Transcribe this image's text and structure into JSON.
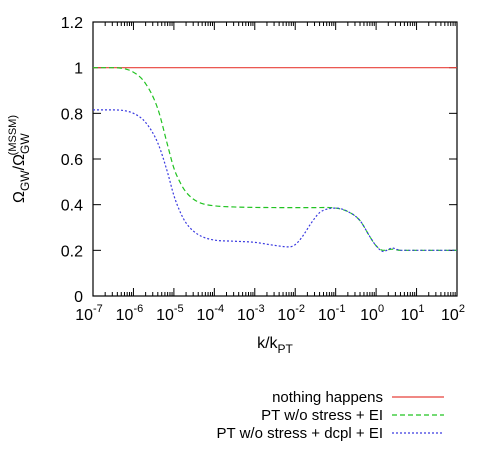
{
  "chart_data": {
    "type": "line",
    "xscale": "log",
    "xlim": [
      1e-07,
      100
    ],
    "ylim": [
      0,
      1.2
    ],
    "grid": false,
    "legend_position": "below-right",
    "xlabel": {
      "base": "k/k",
      "sub": "PT"
    },
    "ylabel": {
      "omega1": "Ω",
      "sub1": "GW",
      "slash": "/Ω",
      "sub2": "GW",
      "sup2": "(MSSM)"
    },
    "xticks": [
      {
        "value": 1e-07,
        "base": "10",
        "exp": "-7"
      },
      {
        "value": 1e-06,
        "base": "10",
        "exp": "-6"
      },
      {
        "value": 1e-05,
        "base": "10",
        "exp": "-5"
      },
      {
        "value": 0.0001,
        "base": "10",
        "exp": "-4"
      },
      {
        "value": 0.001,
        "base": "10",
        "exp": "-3"
      },
      {
        "value": 0.01,
        "base": "10",
        "exp": "-2"
      },
      {
        "value": 0.1,
        "base": "10",
        "exp": "-1"
      },
      {
        "value": 1,
        "base": "10",
        "exp": "0"
      },
      {
        "value": 10,
        "base": "10",
        "exp": "1"
      },
      {
        "value": 100,
        "base": "10",
        "exp": "2"
      }
    ],
    "yticks": [
      {
        "value": 0,
        "label": "0"
      },
      {
        "value": 0.2,
        "label": "0.2"
      },
      {
        "value": 0.4,
        "label": "0.4"
      },
      {
        "value": 0.6,
        "label": "0.6"
      },
      {
        "value": 0.8,
        "label": "0.8"
      },
      {
        "value": 1,
        "label": "1"
      },
      {
        "value": 1.2,
        "label": "1.2"
      }
    ],
    "series": [
      {
        "name": "nothing happens",
        "color": "#e8403a",
        "dash": "solid",
        "x": [
          1e-07,
          100
        ],
        "y": [
          1.0,
          1.0
        ]
      },
      {
        "name": "PT w/o stress + EI",
        "color": "#22c322",
        "dash": "dashed",
        "x": [
          1e-07,
          3e-07,
          1e-06,
          2e-06,
          4e-06,
          7e-06,
          1e-05,
          1.5e-05,
          2e-05,
          3e-05,
          5e-05,
          0.0001,
          0.0003,
          0.001,
          0.01,
          0.03,
          0.1,
          0.2,
          0.4,
          0.7,
          1.0,
          1.5,
          2.5,
          4,
          10,
          100
        ],
        "y": [
          1.0,
          1.0,
          0.98,
          0.93,
          0.82,
          0.66,
          0.56,
          0.49,
          0.455,
          0.425,
          0.405,
          0.395,
          0.39,
          0.388,
          0.387,
          0.387,
          0.385,
          0.37,
          0.33,
          0.26,
          0.22,
          0.2,
          0.205,
          0.2,
          0.2,
          0.2
        ]
      },
      {
        "name": "PT w/o stress + dcpl + EI",
        "color": "#3a3ae0",
        "dash": "dotted",
        "x": [
          1e-07,
          3e-07,
          1e-06,
          2e-06,
          4e-06,
          7e-06,
          1e-05,
          1.5e-05,
          2e-05,
          3e-05,
          5e-05,
          0.0001,
          0.0003,
          0.001,
          0.003,
          0.007,
          0.01,
          0.015,
          0.025,
          0.04,
          0.07,
          0.1,
          0.2,
          0.4,
          0.7,
          1.0,
          1.5,
          2.5,
          4,
          10,
          100
        ],
        "y": [
          0.815,
          0.815,
          0.8,
          0.76,
          0.67,
          0.54,
          0.44,
          0.36,
          0.32,
          0.285,
          0.26,
          0.245,
          0.24,
          0.235,
          0.222,
          0.215,
          0.225,
          0.26,
          0.32,
          0.365,
          0.383,
          0.385,
          0.37,
          0.33,
          0.26,
          0.22,
          0.195,
          0.21,
          0.2,
          0.2,
          0.2
        ]
      }
    ]
  }
}
